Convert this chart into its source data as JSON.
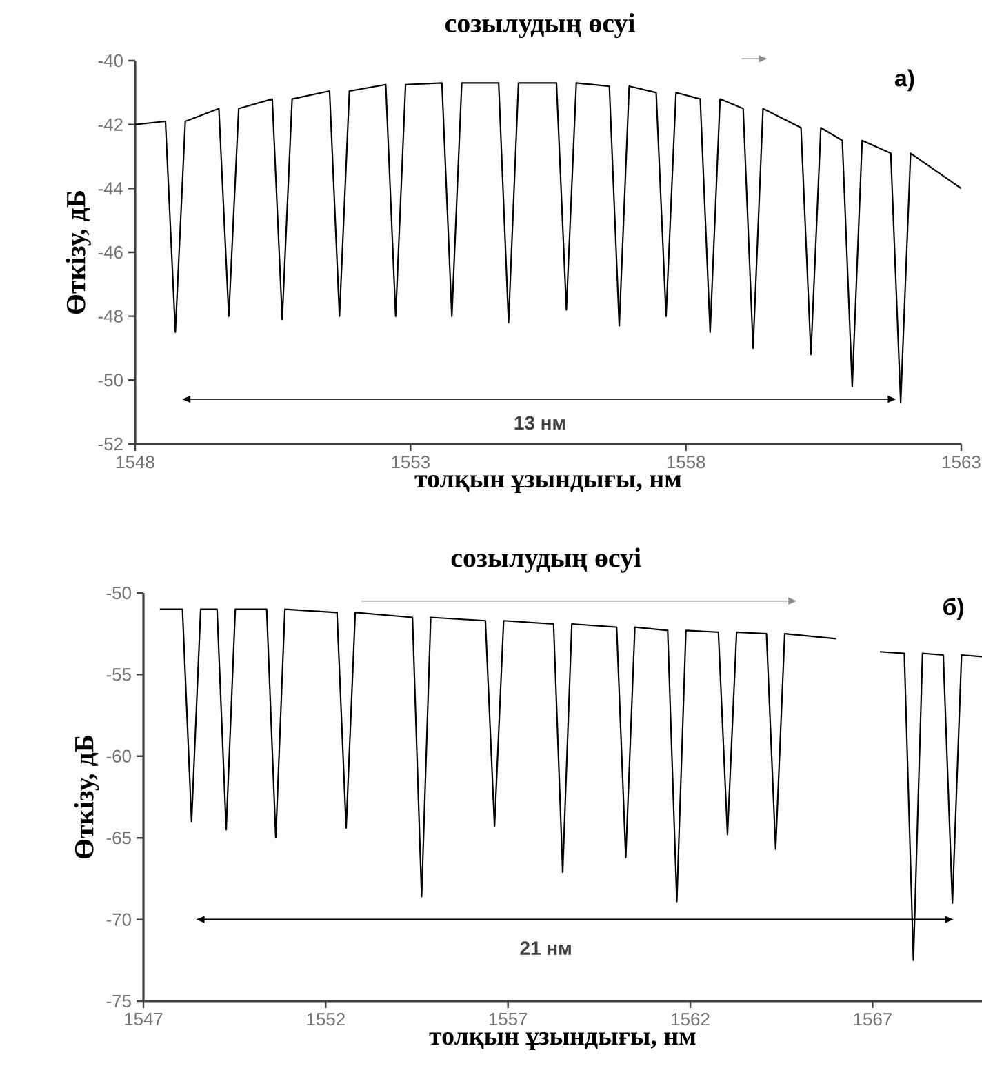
{
  "chart_data": [
    {
      "type": "line",
      "title": "созылудың өсуі",
      "xlabel": "толқын ұзындығы, нм",
      "ylabel": "Өткізу, дБ",
      "xlim": [
        1548,
        1563
      ],
      "xticks": [
        1548,
        1553,
        1558,
        1563
      ],
      "ylim": [
        -52,
        -40
      ],
      "yticks": [
        -52,
        -50,
        -48,
        -46,
        -44,
        -42,
        -40
      ],
      "marker": "none",
      "line_style": "solid",
      "grid": false,
      "series": [
        {
          "color": "#000000",
          "x": [
            1548,
            1548.55,
            1548.73,
            1548.91,
            1549.52,
            1549.7,
            1549.88,
            1550.49,
            1550.67,
            1550.85,
            1551.53,
            1551.71,
            1551.89,
            1552.55,
            1552.73,
            1552.91,
            1553.57,
            1553.75,
            1553.93,
            1554.6,
            1554.78,
            1554.96,
            1555.65,
            1555.83,
            1556.01,
            1556.61,
            1556.79,
            1556.97,
            1557.46,
            1557.64,
            1557.82,
            1558.26,
            1558.44,
            1558.62,
            1559.04,
            1559.22,
            1559.4,
            1560.09,
            1560.27,
            1560.45,
            1560.84,
            1561.02,
            1561.2,
            1561.72,
            1561.9,
            1562.08,
            1563
          ],
          "values": [
            -42.0,
            -41.9,
            -48.5,
            -41.9,
            -41.5,
            -48.0,
            -41.5,
            -41.2,
            -48.1,
            -41.2,
            -40.95,
            -48.0,
            -40.95,
            -40.75,
            -48.0,
            -40.75,
            -40.7,
            -48.0,
            -40.7,
            -40.7,
            -48.2,
            -40.7,
            -40.7,
            -47.8,
            -40.7,
            -40.8,
            -48.3,
            -40.8,
            -41.0,
            -48.0,
            -41.0,
            -41.2,
            -48.5,
            -41.2,
            -41.5,
            -49.0,
            -41.5,
            -42.1,
            -49.2,
            -42.1,
            -42.5,
            -50.2,
            -42.5,
            -42.9,
            -50.7,
            -42.9,
            -44.0
          ]
        }
      ],
      "annotations": [
        "а)",
        "13 нм"
      ]
    },
    {
      "type": "line",
      "title": "созылудың өсуі",
      "xlabel": "толқын ұзындығы, нм",
      "ylabel": "Өткізу, дБ",
      "xlim": [
        1547,
        1570
      ],
      "xticks": [
        1547,
        1552,
        1557,
        1562,
        1567
      ],
      "ylim": [
        -75,
        -50
      ],
      "yticks": [
        -75,
        -70,
        -65,
        -60,
        -55,
        -50
      ],
      "marker": "none",
      "line_style": "solid",
      "grid": false,
      "series": [
        {
          "color": "#000000",
          "x": [
            1547.45,
            1548.07,
            1548.32,
            1548.57,
            1549.02,
            1549.27,
            1549.52,
            1550.38,
            1550.63,
            1550.88,
            1552.31,
            1552.56,
            1552.81,
            1554.38,
            1554.63,
            1554.88,
            1556.38,
            1556.63,
            1556.88,
            1558.25,
            1558.5,
            1558.75,
            1559.98,
            1560.23,
            1560.48,
            1561.38,
            1561.63,
            1561.88,
            1562.77,
            1563.02,
            1563.27,
            1564.09,
            1564.34,
            1564.59,
            1566.0,
            1566.6,
            1567.2,
            1567.87,
            1568.12,
            1568.37,
            1568.94,
            1569.19,
            1569.44,
            1570
          ],
          "values": [
            -51.0,
            -51.0,
            -64.0,
            -51.0,
            -51.0,
            -64.5,
            -51.0,
            -51.0,
            -65.0,
            -51.0,
            -51.2,
            -64.4,
            -51.2,
            -51.5,
            -68.6,
            -51.5,
            -51.7,
            -64.3,
            -51.7,
            -51.9,
            -67.1,
            -51.9,
            -52.1,
            -66.2,
            -52.1,
            -52.3,
            -68.9,
            -52.3,
            -52.4,
            -64.8,
            -52.4,
            -52.5,
            -65.7,
            -52.5,
            -52.8,
            null,
            -53.6,
            -53.7,
            -72.5,
            -53.7,
            -53.8,
            -69.0,
            -53.8,
            -53.9
          ]
        }
      ],
      "annotations": [
        "б)",
        "21 нм"
      ]
    }
  ]
}
